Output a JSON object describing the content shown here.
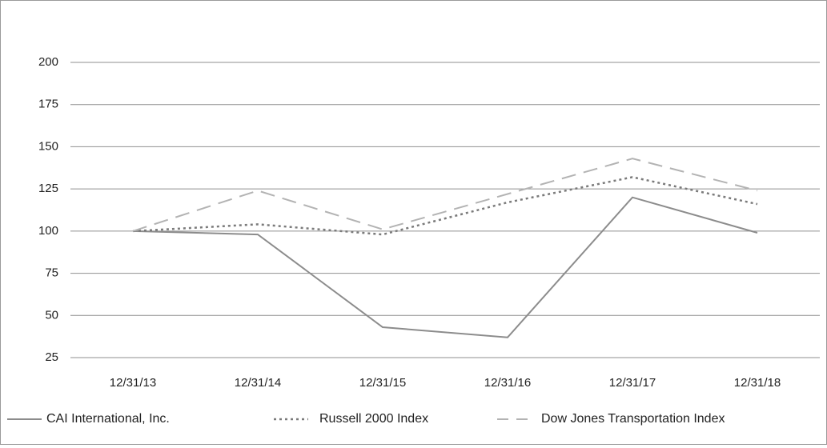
{
  "chart_data": {
    "type": "line",
    "categories": [
      "12/31/13",
      "12/31/14",
      "12/31/15",
      "12/31/16",
      "12/31/17",
      "12/31/18"
    ],
    "yticks": [
      25,
      50,
      75,
      100,
      125,
      150,
      175,
      200
    ],
    "ylim": [
      25,
      200
    ],
    "grid": true,
    "legend_position": "bottom",
    "series": [
      {
        "name": "CAI International, Inc.",
        "values": [
          100,
          98,
          43,
          37,
          120,
          99
        ],
        "color": "#8c8c8c",
        "style": "solid"
      },
      {
        "name": "Russell 2000 Index",
        "values": [
          100,
          104,
          98,
          117,
          132,
          116
        ],
        "color": "#7a7a7a",
        "style": "dotted"
      },
      {
        "name": "Dow Jones Transportation Index",
        "values": [
          100,
          124,
          101,
          122,
          143,
          124
        ],
        "color": "#b3b3b3",
        "style": "dashed"
      }
    ]
  }
}
